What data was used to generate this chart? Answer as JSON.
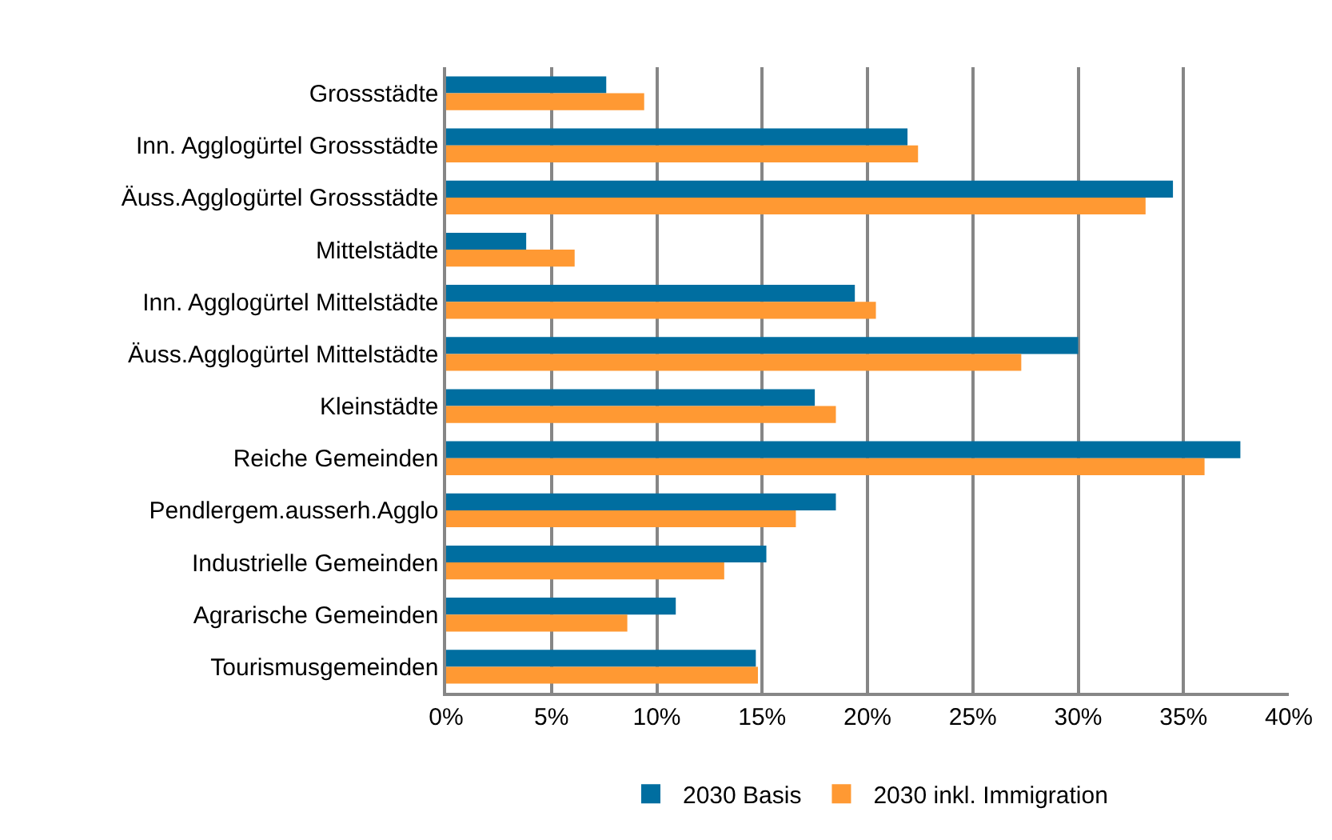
{
  "chart_data": {
    "type": "bar",
    "orientation": "horizontal",
    "categories": [
      "Grossstädte",
      "Inn. Agglogürtel Grossstädte",
      "Äuss.Agglogürtel Grossstädte",
      "Mittelstädte",
      "Inn. Agglogürtel Mittelstädte",
      "Äuss.Agglogürtel Mittelstädte",
      "Kleinstädte",
      "Reiche Gemeinden",
      "Pendlergem.ausserh.Agglo",
      "Industrielle Gemeinden",
      "Agrarische Gemeinden",
      "Tourismusgemeinden"
    ],
    "series": [
      {
        "name": "2030 Basis",
        "color": "#006ea0",
        "values": [
          7.6,
          21.9,
          34.5,
          3.8,
          19.4,
          30.0,
          17.5,
          37.7,
          18.5,
          15.2,
          10.9,
          14.7
        ]
      },
      {
        "name": "2030 inkl. Immigration",
        "color": "#ff9933",
        "values": [
          9.4,
          22.4,
          33.2,
          6.1,
          20.4,
          27.3,
          18.5,
          36.0,
          16.6,
          13.2,
          8.6,
          14.8
        ]
      }
    ],
    "xlim": [
      0,
      40
    ],
    "xticks": [
      {
        "value": 0,
        "label": "0%"
      },
      {
        "value": 5,
        "label": "5%"
      },
      {
        "value": 10,
        "label": "10%"
      },
      {
        "value": 15,
        "label": "15%"
      },
      {
        "value": 20,
        "label": "20%"
      },
      {
        "value": 25,
        "label": "25%"
      },
      {
        "value": 30,
        "label": "30%"
      },
      {
        "value": 35,
        "label": "35%"
      },
      {
        "value": 40,
        "label": "40%"
      }
    ],
    "grid": "x",
    "legend": "bottom"
  }
}
